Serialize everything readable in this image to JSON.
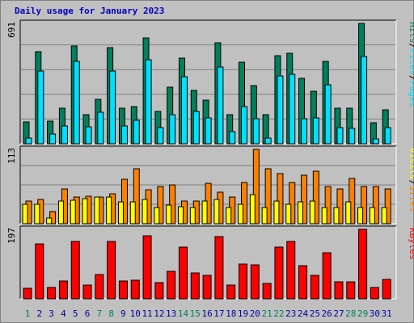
{
  "title": "Daily usage for January 2023",
  "colors": {
    "hits": "#00805c",
    "files": "#00e0ff",
    "visits": "#ffff00",
    "sites": "#ff8000",
    "kbytes": "#ff0000",
    "weekend_label": "#00805c",
    "weekday_label": "#00009c"
  },
  "chart_data": [
    {
      "type": "bar",
      "panel": "hits-files",
      "ymax_label": "691",
      "ylim": [
        0,
        691
      ],
      "right_label_parts": [
        "Pages",
        "Files",
        "Hits"
      ],
      "categories": [
        "1",
        "2",
        "3",
        "4",
        "5",
        "6",
        "7",
        "8",
        "9",
        "10",
        "11",
        "12",
        "13",
        "14",
        "15",
        "16",
        "17",
        "18",
        "19",
        "20",
        "21",
        "22",
        "23",
        "24",
        "25",
        "26",
        "27",
        "28",
        "29",
        "30",
        "31"
      ],
      "series": [
        {
          "name": "Hits",
          "values": [
            126,
            528,
            130,
            205,
            559,
            168,
            255,
            553,
            205,
            212,
            607,
            186,
            324,
            490,
            307,
            250,
            581,
            165,
            470,
            335,
            165,
            506,
            520,
            377,
            300,
            472,
            205,
            202,
            691,
            122,
            194
          ]
        },
        {
          "name": "Files",
          "values": [
            31,
            418,
            54,
            104,
            472,
            96,
            183,
            417,
            103,
            135,
            484,
            94,
            167,
            386,
            185,
            148,
            441,
            70,
            214,
            143,
            34,
            390,
            400,
            142,
            147,
            338,
            91,
            88,
            499,
            29,
            93
          ]
        }
      ],
      "weekend_days": [
        1,
        7,
        8,
        14,
        15,
        21,
        22,
        28,
        29
      ]
    },
    {
      "type": "bar",
      "panel": "sites-visits",
      "ymax_label": "113",
      "ylim": [
        0,
        113
      ],
      "right_label_parts": [
        "Sites",
        "Visits"
      ],
      "categories": [
        "1",
        "2",
        "3",
        "4",
        "5",
        "6",
        "7",
        "8",
        "9",
        "10",
        "11",
        "12",
        "13",
        "14",
        "15",
        "16",
        "17",
        "18",
        "19",
        "20",
        "21",
        "22",
        "23",
        "24",
        "25",
        "26",
        "27",
        "28",
        "29",
        "30",
        "31"
      ],
      "series": [
        {
          "name": "Visits",
          "values": [
            29,
            30,
            8,
            34,
            36,
            38,
            40,
            40,
            33,
            33,
            37,
            25,
            28,
            26,
            24,
            34,
            37,
            25,
            29,
            44,
            25,
            35,
            30,
            33,
            35,
            25,
            25,
            33,
            25,
            25,
            25
          ]
        },
        {
          "name": "Sites",
          "values": [
            35,
            37,
            18,
            53,
            40,
            42,
            41,
            45,
            68,
            83,
            52,
            56,
            59,
            34,
            34,
            62,
            48,
            40,
            63,
            113,
            84,
            76,
            63,
            74,
            80,
            56,
            53,
            69,
            57,
            56,
            53
          ]
        }
      ]
    },
    {
      "type": "bar",
      "panel": "kbytes",
      "ymax_label": "197",
      "ylim": [
        0,
        197
      ],
      "right_label_parts": [
        "KBytes"
      ],
      "categories": [
        "1",
        "2",
        "3",
        "4",
        "5",
        "6",
        "7",
        "8",
        "9",
        "10",
        "11",
        "12",
        "13",
        "14",
        "15",
        "16",
        "17",
        "18",
        "19",
        "20",
        "21",
        "22",
        "23",
        "24",
        "25",
        "26",
        "27",
        "28",
        "29",
        "30",
        "31"
      ],
      "series": [
        {
          "name": "KBytes",
          "values": [
            30,
            155,
            33,
            51,
            163,
            40,
            68,
            163,
            50,
            52,
            178,
            46,
            77,
            147,
            73,
            66,
            177,
            39,
            99,
            96,
            43,
            146,
            162,
            95,
            66,
            131,
            49,
            49,
            197,
            31,
            55
          ]
        }
      ]
    }
  ]
}
